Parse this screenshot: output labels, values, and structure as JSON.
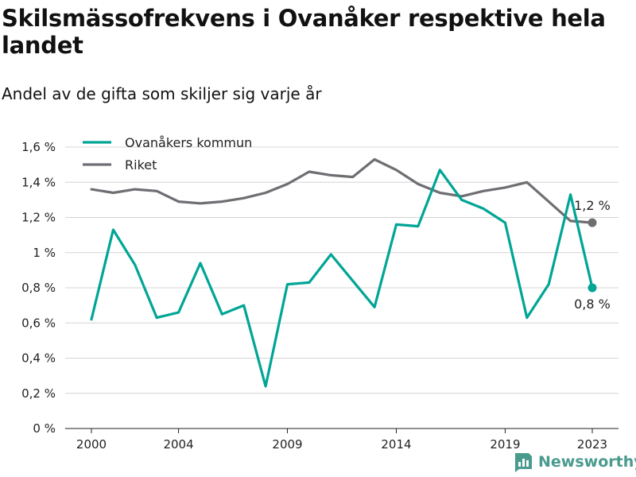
{
  "header": {
    "title": "Skilsmässofrekvens i Ovanåker respektive hela landet",
    "subtitle": "Andel av de gifta som skiljer sig varje år"
  },
  "brand": {
    "name": "Newsworthy",
    "color": "#4a9a8e"
  },
  "chart_data": {
    "type": "line",
    "title": "Skilsmässofrekvens i Ovanåker respektive hela landet",
    "subtitle": "Andel av de gifta som skiljer sig varje år",
    "x": [
      2000,
      2001,
      2002,
      2003,
      2004,
      2005,
      2006,
      2007,
      2008,
      2009,
      2010,
      2011,
      2012,
      2013,
      2014,
      2015,
      2016,
      2017,
      2018,
      2019,
      2020,
      2021,
      2022,
      2023
    ],
    "x_ticks": [
      2000,
      2004,
      2009,
      2014,
      2019,
      2023
    ],
    "x_tick_labels": [
      "2000",
      "2004",
      "2009",
      "2014",
      "2019",
      "2023"
    ],
    "ylim": [
      0,
      1.6
    ],
    "y_ticks": [
      0,
      0.2,
      0.4,
      0.6,
      0.8,
      1.0,
      1.2,
      1.4,
      1.6
    ],
    "y_tick_labels": [
      "0 %",
      "0,2 %",
      "0,4 %",
      "0,6 %",
      "0,8 %",
      "1 %",
      "1,2 %",
      "1,4 %",
      "1,6 %"
    ],
    "grid": "horizontal",
    "legend": "top-left",
    "series": [
      {
        "name": "Ovanåkers kommun",
        "color": "#00a595",
        "values": [
          0.62,
          1.13,
          0.93,
          0.63,
          0.66,
          0.94,
          0.65,
          0.7,
          0.24,
          0.82,
          0.83,
          0.99,
          0.84,
          0.69,
          1.16,
          1.15,
          1.47,
          1.3,
          1.25,
          1.17,
          0.63,
          0.82,
          1.33,
          0.8
        ],
        "end_label": "0,8 %"
      },
      {
        "name": "Riket",
        "color": "#6e6e73",
        "values": [
          1.36,
          1.34,
          1.36,
          1.35,
          1.29,
          1.28,
          1.29,
          1.31,
          1.34,
          1.39,
          1.46,
          1.44,
          1.43,
          1.53,
          1.47,
          1.39,
          1.34,
          1.32,
          1.35,
          1.37,
          1.4,
          1.29,
          1.18,
          1.17
        ],
        "end_label": "1,2 %"
      }
    ]
  }
}
